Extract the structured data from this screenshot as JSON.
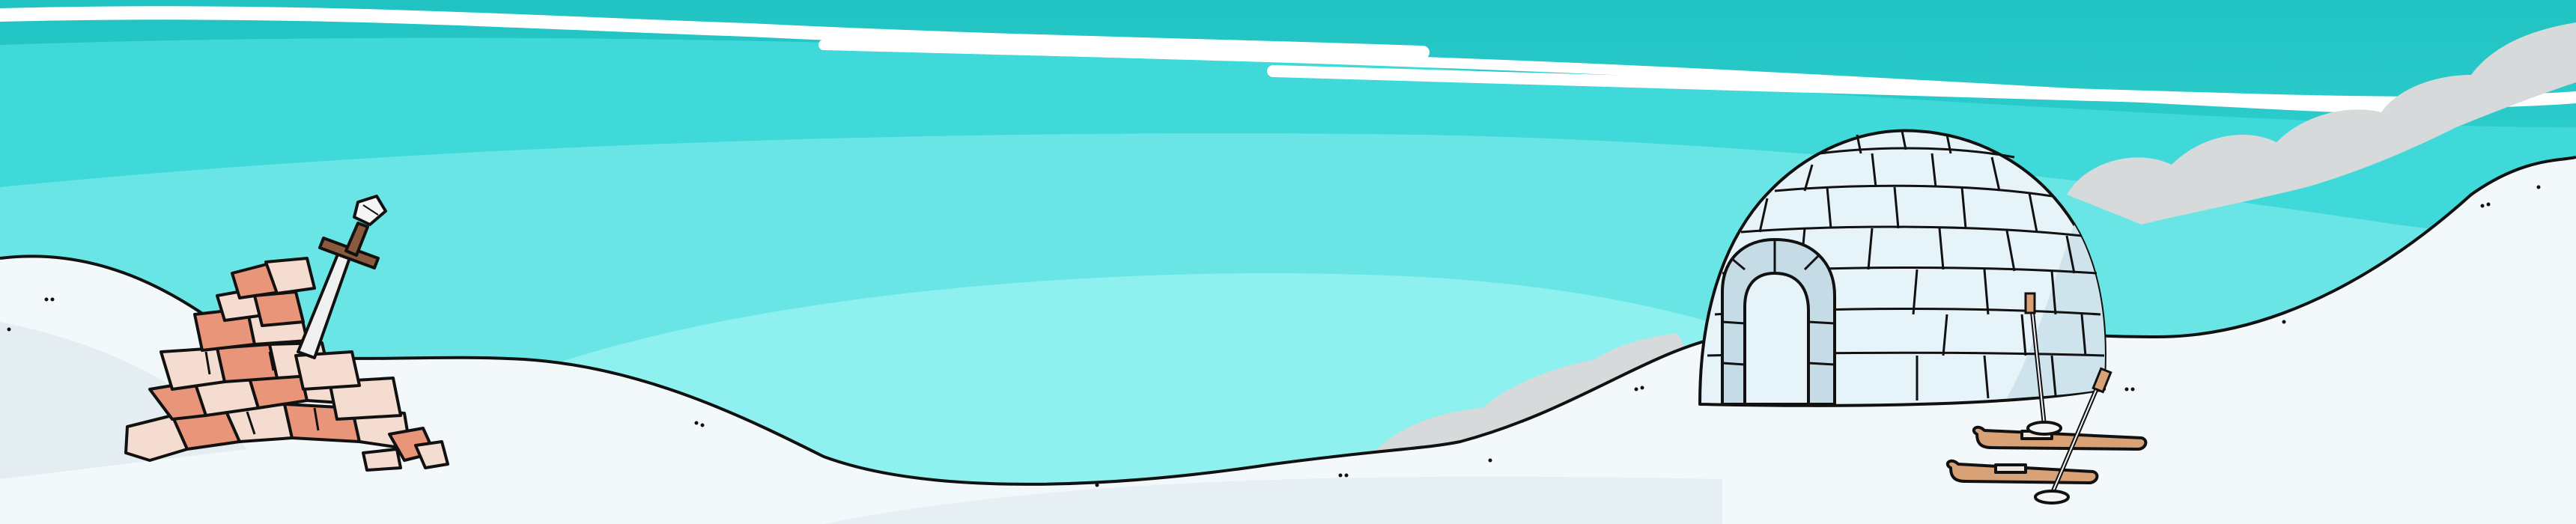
{
  "scene": {
    "name": "arctic-igloo-snowfield",
    "objects": [
      "sky",
      "clouds",
      "smoke",
      "snow-hills",
      "igloo",
      "crate-pile",
      "sword",
      "skis",
      "ski-poles"
    ]
  },
  "palette": {
    "sky_top": "#22c4c4",
    "sky_mid": "#3ed9d9",
    "sky_light": "#6fe8e8",
    "sky_pale": "#92f2f2",
    "cloud": "#ffffff",
    "smoke": "#d8dcdc",
    "snow": "#f3f8fb",
    "snow_shadow": "#e4eef2",
    "outline": "#111111",
    "igloo_block": "#e6f3f8",
    "igloo_shade": "#b9d4e0",
    "crate_light": "#f4ddd0",
    "crate_dark": "#e8957a",
    "ski_wood": "#d9a176",
    "sword_blade": "#f0f0f0",
    "sword_hilt": "#8a5a3c"
  }
}
